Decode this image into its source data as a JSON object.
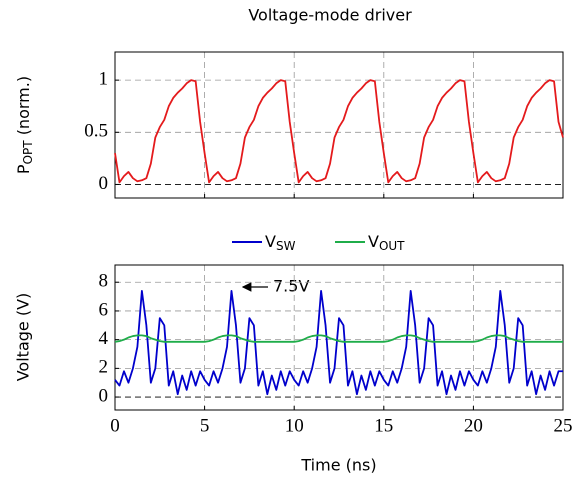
{
  "chart_data": [
    {
      "type": "line",
      "title": "Voltage-mode driver",
      "ylabel": {
        "main": "P",
        "sub": "OPT",
        "rest": " (norm.)"
      },
      "xlim": [
        0,
        25
      ],
      "xticks": [
        0,
        5,
        10,
        15,
        20,
        25
      ],
      "show_xtick_labels": false,
      "ylim": [
        -0.13,
        1.27
      ],
      "yticks": [
        0,
        0.5,
        1
      ],
      "grid": true,
      "zero_line": true,
      "x": [
        0,
        0.25,
        0.5,
        0.75,
        1,
        1.25,
        1.5,
        1.75,
        2,
        2.25,
        2.5,
        2.75,
        3,
        3.25,
        3.5,
        3.75,
        4,
        4.25,
        4.5,
        4.75,
        5,
        5.25,
        5.5,
        5.75,
        6,
        6.25,
        6.5,
        6.75,
        7,
        7.25,
        7.5,
        7.75,
        8,
        8.25,
        8.5,
        8.75,
        9,
        9.25,
        9.5,
        9.75,
        10,
        10.25,
        10.5,
        10.75,
        11,
        11.25,
        11.5,
        11.75,
        12,
        12.25,
        12.5,
        12.75,
        13,
        13.25,
        13.5,
        13.75,
        14,
        14.25,
        14.5,
        14.75,
        15,
        15.25,
        15.5,
        15.75,
        16,
        16.25,
        16.5,
        16.75,
        17,
        17.25,
        17.5,
        17.75,
        18,
        18.25,
        18.5,
        18.75,
        19,
        19.25,
        19.5,
        19.75,
        20,
        20.25,
        20.5,
        20.75,
        21,
        21.25,
        21.5,
        21.75,
        22,
        22.25,
        22.5,
        22.75,
        23,
        23.25,
        23.5,
        23.75,
        24,
        24.25,
        24.5,
        24.75,
        25
      ],
      "series": [
        {
          "color": "#e41a1c",
          "values": [
            0.3,
            0.02,
            0.08,
            0.12,
            0.06,
            0.03,
            0.04,
            0.06,
            0.2,
            0.45,
            0.55,
            0.62,
            0.75,
            0.83,
            0.88,
            0.92,
            0.97,
            1.0,
            0.99,
            0.6,
            0.3,
            0.02,
            0.08,
            0.12,
            0.06,
            0.03,
            0.04,
            0.06,
            0.2,
            0.45,
            0.55,
            0.62,
            0.75,
            0.83,
            0.88,
            0.92,
            0.97,
            1.0,
            0.99,
            0.6,
            0.3,
            0.02,
            0.08,
            0.12,
            0.06,
            0.03,
            0.04,
            0.06,
            0.2,
            0.45,
            0.55,
            0.62,
            0.75,
            0.83,
            0.88,
            0.92,
            0.97,
            1.0,
            0.99,
            0.6,
            0.3,
            0.02,
            0.08,
            0.12,
            0.06,
            0.03,
            0.04,
            0.06,
            0.2,
            0.45,
            0.55,
            0.62,
            0.75,
            0.83,
            0.88,
            0.92,
            0.97,
            1.0,
            0.99,
            0.6,
            0.3,
            0.02,
            0.08,
            0.12,
            0.06,
            0.03,
            0.04,
            0.06,
            0.2,
            0.45,
            0.55,
            0.62,
            0.75,
            0.83,
            0.88,
            0.92,
            0.97,
            1.0,
            0.99,
            0.6,
            0.45
          ]
        }
      ]
    },
    {
      "type": "line",
      "xlabel": "Time (ns)",
      "ylabel": {
        "main": "Voltage (V)"
      },
      "xlim": [
        0,
        25
      ],
      "xticks": [
        0,
        5,
        10,
        15,
        20,
        25
      ],
      "show_xtick_labels": true,
      "ylim": [
        -0.9,
        9.2
      ],
      "yticks": [
        0,
        2,
        4,
        6,
        8
      ],
      "grid": true,
      "zero_line": true,
      "annotation": "7.5V",
      "x": [
        0,
        0.25,
        0.5,
        0.75,
        1,
        1.25,
        1.5,
        1.75,
        2,
        2.25,
        2.5,
        2.75,
        3,
        3.25,
        3.5,
        3.75,
        4,
        4.25,
        4.5,
        4.75,
        5,
        5.25,
        5.5,
        5.75,
        6,
        6.25,
        6.5,
        6.75,
        7,
        7.25,
        7.5,
        7.75,
        8,
        8.25,
        8.5,
        8.75,
        9,
        9.25,
        9.5,
        9.75,
        10,
        10.25,
        10.5,
        10.75,
        11,
        11.25,
        11.5,
        11.75,
        12,
        12.25,
        12.5,
        12.75,
        13,
        13.25,
        13.5,
        13.75,
        14,
        14.25,
        14.5,
        14.75,
        15,
        15.25,
        15.5,
        15.75,
        16,
        16.25,
        16.5,
        16.75,
        17,
        17.25,
        17.5,
        17.75,
        18,
        18.25,
        18.5,
        18.75,
        19,
        19.25,
        19.5,
        19.75,
        20,
        20.25,
        20.5,
        20.75,
        21,
        21.25,
        21.5,
        21.75,
        22,
        22.25,
        22.5,
        22.75,
        23,
        23.25,
        23.5,
        23.75,
        24,
        24.25,
        24.5,
        24.75,
        25
      ],
      "series": [
        {
          "name": "V",
          "subscript": "SW",
          "color": "#0000cc",
          "values": [
            1.2,
            0.8,
            1.8,
            1.0,
            2.0,
            3.5,
            7.4,
            5.0,
            1.0,
            2.0,
            5.5,
            5.0,
            0.8,
            1.8,
            0.2,
            1.5,
            0.5,
            1.8,
            0.8,
            1.8,
            1.2,
            0.8,
            1.8,
            1.0,
            2.0,
            3.5,
            7.4,
            5.0,
            1.0,
            2.0,
            5.5,
            5.0,
            0.8,
            1.8,
            0.2,
            1.5,
            0.5,
            1.8,
            0.8,
            1.8,
            1.2,
            0.8,
            1.8,
            1.0,
            2.0,
            3.5,
            7.4,
            5.0,
            1.0,
            2.0,
            5.5,
            5.0,
            0.8,
            1.8,
            0.2,
            1.5,
            0.5,
            1.8,
            0.8,
            1.8,
            1.2,
            0.8,
            1.8,
            1.0,
            2.0,
            3.5,
            7.4,
            5.0,
            1.0,
            2.0,
            5.5,
            5.0,
            0.8,
            1.8,
            0.2,
            1.5,
            0.5,
            1.8,
            0.8,
            1.8,
            1.2,
            0.8,
            1.8,
            1.0,
            2.0,
            3.5,
            7.4,
            5.0,
            1.0,
            2.0,
            5.5,
            5.0,
            0.8,
            1.8,
            0.2,
            1.5,
            0.5,
            1.8,
            0.8,
            1.8,
            1.8
          ]
        },
        {
          "name": "V",
          "subscript": "OUT",
          "color": "#1fad4a",
          "values": [
            3.85,
            3.9,
            4.0,
            4.15,
            4.25,
            4.3,
            4.3,
            4.25,
            4.1,
            4.0,
            3.9,
            3.85,
            3.85,
            3.85,
            3.85,
            3.85,
            3.85,
            3.85,
            3.85,
            3.85,
            3.85,
            3.9,
            4.0,
            4.15,
            4.25,
            4.3,
            4.3,
            4.25,
            4.1,
            4.0,
            3.9,
            3.85,
            3.85,
            3.85,
            3.85,
            3.85,
            3.85,
            3.85,
            3.85,
            3.85,
            3.85,
            3.9,
            4.0,
            4.15,
            4.25,
            4.3,
            4.3,
            4.25,
            4.1,
            4.0,
            3.9,
            3.85,
            3.85,
            3.85,
            3.85,
            3.85,
            3.85,
            3.85,
            3.85,
            3.85,
            3.85,
            3.9,
            4.0,
            4.15,
            4.25,
            4.3,
            4.3,
            4.25,
            4.1,
            4.0,
            3.9,
            3.85,
            3.85,
            3.85,
            3.85,
            3.85,
            3.85,
            3.85,
            3.85,
            3.85,
            3.85,
            3.9,
            4.0,
            4.15,
            4.25,
            4.3,
            4.3,
            4.25,
            4.1,
            4.0,
            3.9,
            3.85,
            3.85,
            3.85,
            3.85,
            3.85,
            3.85,
            3.85,
            3.85,
            3.85,
            3.85
          ]
        }
      ]
    }
  ]
}
